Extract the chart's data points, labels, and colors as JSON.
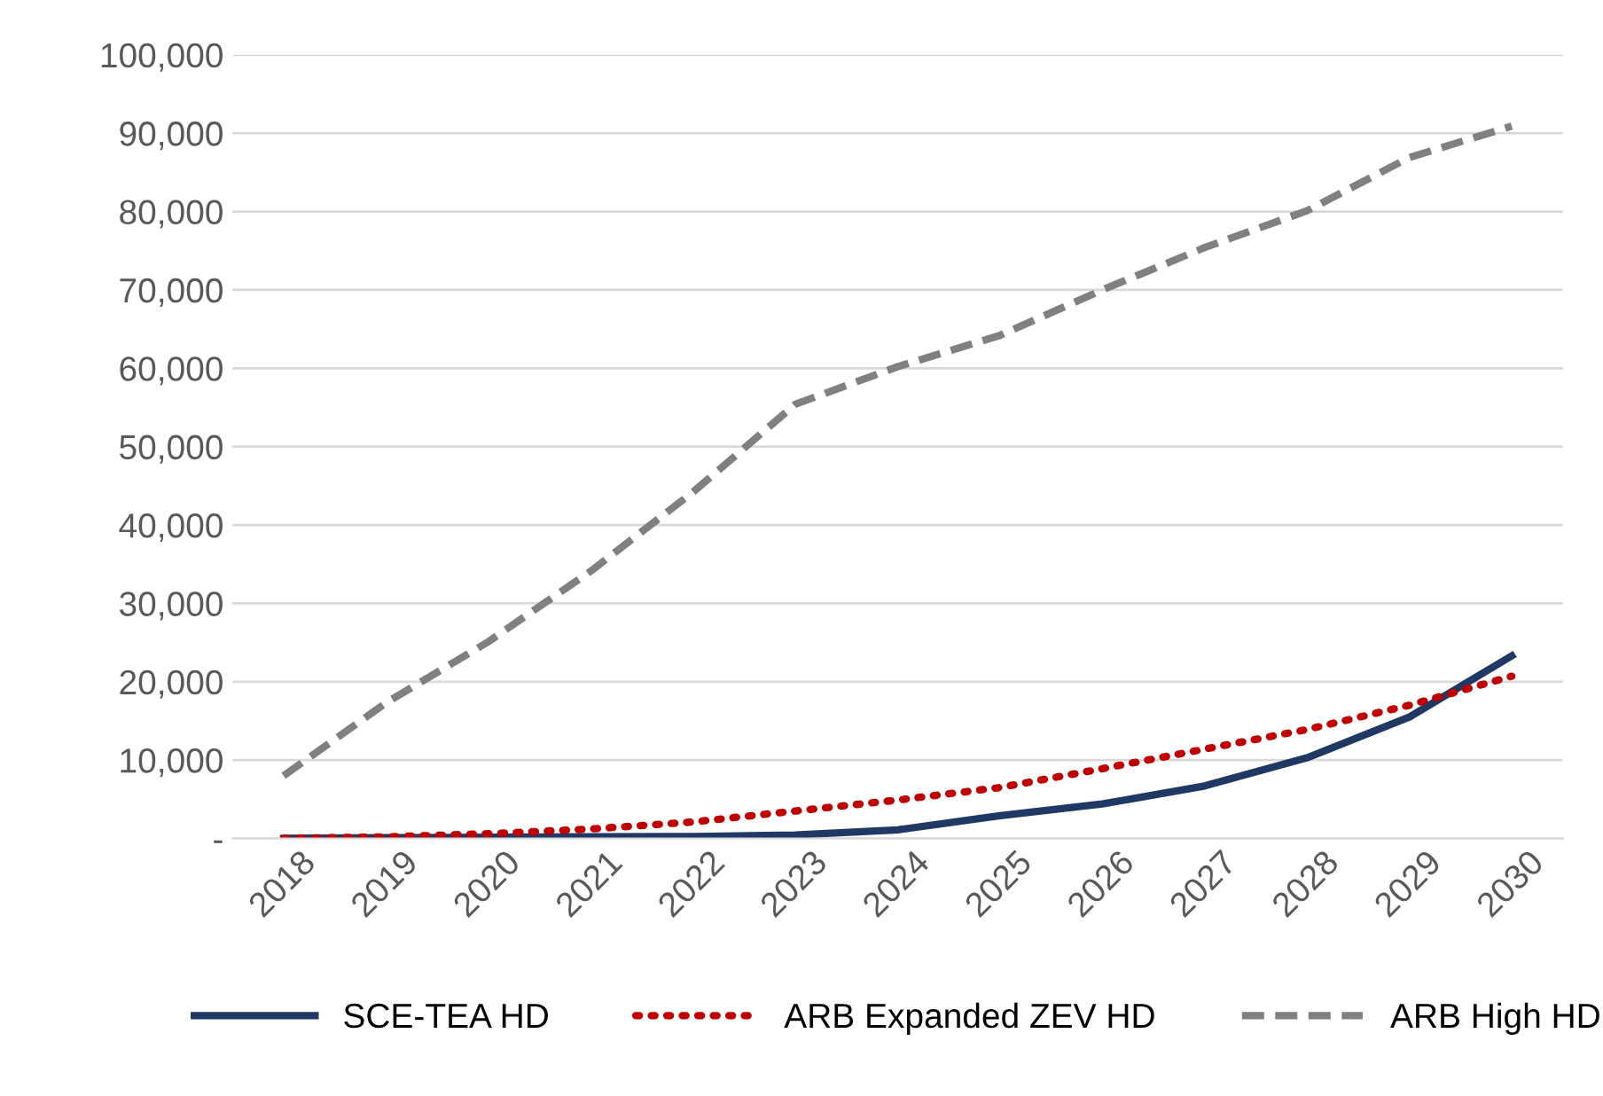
{
  "chart_data": {
    "type": "line",
    "categories": [
      "2018",
      "2019",
      "2020",
      "2021",
      "2022",
      "2023",
      "2024",
      "2025",
      "2026",
      "2027",
      "2028",
      "2029",
      "2030"
    ],
    "series": [
      {
        "name": "SCE-TEA HD",
        "color": "#1f3864",
        "line_style": "solid",
        "values": [
          0,
          100,
          150,
          200,
          250,
          450,
          1100,
          2900,
          4400,
          6700,
          10300,
          15500,
          23300
        ]
      },
      {
        "name": "ARB Expanded ZEV HD",
        "color": "#c00000",
        "line_style": "dotted",
        "values": [
          0,
          200,
          600,
          1200,
          2100,
          3500,
          4900,
          6500,
          8900,
          11400,
          13900,
          17000,
          20700
        ]
      },
      {
        "name": "ARB High HD",
        "color": "#808080",
        "line_style": "dashed",
        "values": [
          8000,
          17300,
          25100,
          34100,
          44200,
          55400,
          60200,
          64200,
          70000,
          75400,
          80100,
          86900,
          90900
        ]
      }
    ],
    "ylim": [
      0,
      100000
    ],
    "yticks": [
      {
        "value": 0,
        "label": "-"
      },
      {
        "value": 10000,
        "label": "10,000"
      },
      {
        "value": 20000,
        "label": "20,000"
      },
      {
        "value": 30000,
        "label": "30,000"
      },
      {
        "value": 40000,
        "label": "40,000"
      },
      {
        "value": 50000,
        "label": "50,000"
      },
      {
        "value": 60000,
        "label": "60,000"
      },
      {
        "value": 70000,
        "label": "70,000"
      },
      {
        "value": 80000,
        "label": "80,000"
      },
      {
        "value": 90000,
        "label": "90,000"
      },
      {
        "value": 100000,
        "label": "100,000"
      }
    ],
    "grid": "y",
    "legend": "bottom"
  }
}
